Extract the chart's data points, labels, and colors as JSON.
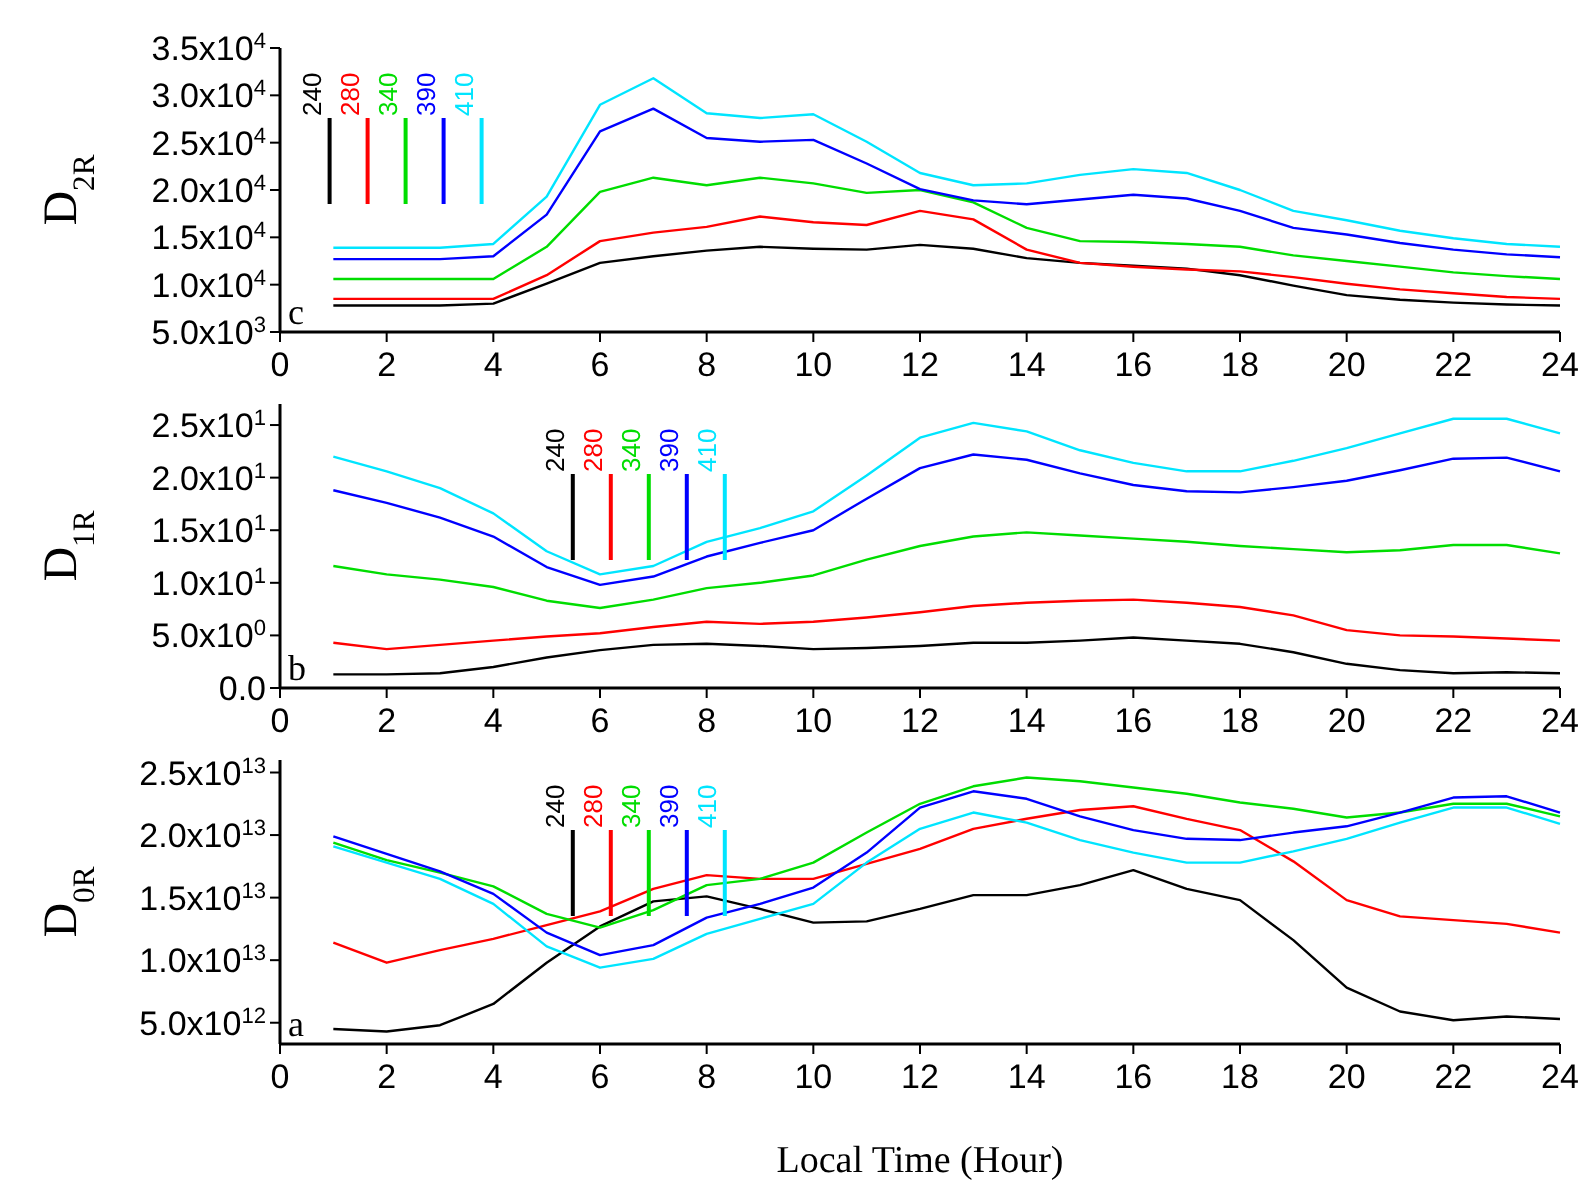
{
  "chart_data": [
    {
      "type": "line",
      "ylabel": "D$_{2R}$",
      "annotations": [
        "c"
      ],
      "legend": "top left",
      "x": [
        1,
        2,
        3,
        4,
        5,
        6,
        7,
        8,
        9,
        10,
        11,
        12,
        13,
        14,
        15,
        16,
        17,
        18,
        19,
        20,
        21,
        22,
        23,
        24
      ],
      "xlim": [
        0,
        24
      ],
      "xticks": [
        0,
        2,
        4,
        6,
        8,
        10,
        12,
        14,
        16,
        18,
        20,
        22,
        24
      ],
      "ylim": [
        5000,
        35000
      ],
      "yticks": [
        {
          "value": 5000,
          "label": "5.0x10$^{3}$"
        },
        {
          "value": 10000,
          "label": "1.0x10$^{4}$"
        },
        {
          "value": 15000,
          "label": "1.5x10$^{4}$"
        },
        {
          "value": 20000,
          "label": "2.0x10$^{4}$"
        },
        {
          "value": 25000,
          "label": "2.5x10$^{4}$"
        },
        {
          "value": 30000,
          "label": "3.0x10$^{4}$"
        },
        {
          "value": 35000,
          "label": "3.5x10$^{4}$"
        }
      ],
      "series": [
        {
          "name": "240",
          "color": "#000000",
          "values": [
            7800,
            7800,
            7800,
            8000,
            10100,
            12300,
            13000,
            13600,
            14000,
            13800,
            13700,
            14200,
            13800,
            12800,
            12300,
            12000,
            11700,
            11000,
            9900,
            8900,
            8400,
            8100,
            7900,
            7800
          ]
        },
        {
          "name": "280",
          "color": "#ff0000",
          "values": [
            8500,
            8500,
            8500,
            8500,
            11000,
            14600,
            15500,
            16100,
            17200,
            16600,
            16300,
            17800,
            16900,
            13700,
            12300,
            11900,
            11600,
            11400,
            10800,
            10100,
            9500,
            9100,
            8700,
            8500
          ]
        },
        {
          "name": "340",
          "color": "#00dd00",
          "values": [
            10600,
            10600,
            10600,
            10600,
            14000,
            19800,
            21300,
            20500,
            21300,
            20700,
            19700,
            20000,
            18700,
            16000,
            14600,
            14500,
            14300,
            14000,
            13100,
            12500,
            11900,
            11300,
            10900,
            10600
          ]
        },
        {
          "name": "390",
          "color": "#0000ff",
          "values": [
            12700,
            12700,
            12700,
            13000,
            17400,
            26200,
            28600,
            25500,
            25100,
            25300,
            22800,
            20100,
            18900,
            18500,
            19000,
            19500,
            19100,
            17800,
            16000,
            15300,
            14400,
            13700,
            13200,
            12900
          ]
        },
        {
          "name": "410",
          "color": "#00e5ff",
          "values": [
            13900,
            13900,
            13900,
            14300,
            19300,
            29000,
            31800,
            28100,
            27600,
            28000,
            25100,
            21800,
            20500,
            20700,
            21600,
            22200,
            21800,
            20000,
            17800,
            16800,
            15700,
            14900,
            14300,
            14000
          ]
        }
      ]
    },
    {
      "type": "line",
      "ylabel": "D$_{1R}$",
      "annotations": [
        "b"
      ],
      "legend": "top",
      "x": [
        1,
        2,
        3,
        4,
        5,
        6,
        7,
        8,
        9,
        10,
        11,
        12,
        13,
        14,
        15,
        16,
        17,
        18,
        19,
        20,
        21,
        22,
        23,
        24
      ],
      "xlim": [
        0,
        24
      ],
      "xticks": [
        0,
        2,
        4,
        6,
        8,
        10,
        12,
        14,
        16,
        18,
        20,
        22,
        24
      ],
      "ylim": [
        0,
        27
      ],
      "yticks": [
        {
          "value": 0,
          "label": "0.0"
        },
        {
          "value": 5,
          "label": "5.0x10$^{0}$"
        },
        {
          "value": 10,
          "label": "1.0x10$^{1}$"
        },
        {
          "value": 15,
          "label": "1.5x10$^{1}$"
        },
        {
          "value": 20,
          "label": "2.0x10$^{1}$"
        },
        {
          "value": 25,
          "label": "2.5x10$^{1}$"
        }
      ],
      "series": [
        {
          "name": "240",
          "color": "#000000",
          "values": [
            1.3,
            1.3,
            1.4,
            2.0,
            2.9,
            3.6,
            4.1,
            4.2,
            4.0,
            3.7,
            3.8,
            4.0,
            4.3,
            4.3,
            4.5,
            4.8,
            4.5,
            4.2,
            3.4,
            2.3,
            1.7,
            1.4,
            1.5,
            1.4
          ]
        },
        {
          "name": "280",
          "color": "#ff0000",
          "values": [
            4.3,
            3.7,
            4.1,
            4.5,
            4.9,
            5.2,
            5.8,
            6.3,
            6.1,
            6.3,
            6.7,
            7.2,
            7.8,
            8.1,
            8.3,
            8.4,
            8.1,
            7.7,
            6.9,
            5.5,
            5.0,
            4.9,
            4.7,
            4.5
          ]
        },
        {
          "name": "340",
          "color": "#00dd00",
          "values": [
            11.6,
            10.8,
            10.3,
            9.6,
            8.3,
            7.6,
            8.4,
            9.5,
            10.0,
            10.7,
            12.2,
            13.5,
            14.4,
            14.8,
            14.5,
            14.2,
            13.9,
            13.5,
            13.2,
            12.9,
            13.1,
            13.6,
            13.6,
            12.8
          ]
        },
        {
          "name": "390",
          "color": "#0000ff",
          "values": [
            18.8,
            17.6,
            16.2,
            14.4,
            11.5,
            9.8,
            10.6,
            12.5,
            13.8,
            15.0,
            18.0,
            20.9,
            22.2,
            21.7,
            20.4,
            19.3,
            18.7,
            18.6,
            19.1,
            19.7,
            20.7,
            21.8,
            21.9,
            20.6
          ]
        },
        {
          "name": "410",
          "color": "#00e5ff",
          "values": [
            22.0,
            20.6,
            19.0,
            16.6,
            13.0,
            10.8,
            11.6,
            13.9,
            15.2,
            16.8,
            20.2,
            23.8,
            25.2,
            24.4,
            22.6,
            21.4,
            20.6,
            20.6,
            21.6,
            22.8,
            24.2,
            25.6,
            25.6,
            24.2
          ]
        }
      ]
    },
    {
      "type": "line",
      "ylabel": "D$_{0R}$",
      "xlabel": "Local Time (Hour)",
      "annotations": [
        "a"
      ],
      "legend": "top",
      "x": [
        1,
        2,
        3,
        4,
        5,
        6,
        7,
        8,
        9,
        10,
        11,
        12,
        13,
        14,
        15,
        16,
        17,
        18,
        19,
        20,
        21,
        22,
        23,
        24
      ],
      "xlim": [
        0,
        24
      ],
      "xticks": [
        0,
        2,
        4,
        6,
        8,
        10,
        12,
        14,
        16,
        18,
        20,
        22,
        24
      ],
      "ylim": [
        3300000000000,
        26000000000000
      ],
      "yticks": [
        {
          "value": 5000000000000,
          "label": "5.0x10$^{12}$"
        },
        {
          "value": 10000000000000,
          "label": "1.0x10$^{13}$"
        },
        {
          "value": 15000000000000,
          "label": "1.5x10$^{13}$"
        },
        {
          "value": 20000000000000,
          "label": "2.0x10$^{13}$"
        },
        {
          "value": 25000000000000,
          "label": "2.5x10$^{13}$"
        }
      ],
      "series": [
        {
          "name": "240",
          "color": "#000000",
          "values": [
            4500000000000,
            4300000000000,
            4800000000000,
            6500000000000,
            9800000000000,
            12700000000000,
            14700000000000,
            15100000000000,
            14100000000000,
            13000000000000,
            13100000000000,
            14100000000000,
            15200000000000,
            15200000000000,
            16000000000000,
            17200000000000,
            15700000000000,
            14800000000000,
            11600000000000,
            7800000000000,
            5900000000000,
            5200000000000,
            5500000000000,
            5300000000000
          ]
        },
        {
          "name": "280",
          "color": "#ff0000",
          "values": [
            11400000000000,
            9800000000000,
            10800000000000,
            11700000000000,
            12800000000000,
            13900000000000,
            15700000000000,
            16800000000000,
            16500000000000,
            16500000000000,
            17700000000000,
            18900000000000,
            20500000000000,
            21300000000000,
            22000000000000,
            22300000000000,
            21300000000000,
            20400000000000,
            17900000000000,
            14800000000000,
            13500000000000,
            13200000000000,
            12900000000000,
            12200000000000
          ]
        },
        {
          "name": "340",
          "color": "#00dd00",
          "values": [
            19400000000000,
            18000000000000,
            17000000000000,
            15900000000000,
            13700000000000,
            12600000000000,
            14000000000000,
            16000000000000,
            16500000000000,
            17800000000000,
            20200000000000,
            22500000000000,
            23900000000000,
            24600000000000,
            24300000000000,
            23800000000000,
            23300000000000,
            22600000000000,
            22100000000000,
            21400000000000,
            21800000000000,
            22500000000000,
            22500000000000,
            21500000000000
          ]
        },
        {
          "name": "390",
          "color": "#0000ff",
          "values": [
            19900000000000,
            18500000000000,
            17100000000000,
            15300000000000,
            12200000000000,
            10400000000000,
            11200000000000,
            13400000000000,
            14500000000000,
            15800000000000,
            18600000000000,
            22200000000000,
            23500000000000,
            22900000000000,
            21500000000000,
            20400000000000,
            19700000000000,
            19600000000000,
            20200000000000,
            20700000000000,
            21800000000000,
            23000000000000,
            23100000000000,
            21800000000000
          ]
        },
        {
          "name": "410",
          "color": "#00e5ff",
          "values": [
            19100000000000,
            17800000000000,
            16500000000000,
            14500000000000,
            11100000000000,
            9400000000000,
            10100000000000,
            12100000000000,
            13300000000000,
            14500000000000,
            17800000000000,
            20500000000000,
            21800000000000,
            21000000000000,
            19600000000000,
            18600000000000,
            17800000000000,
            17800000000000,
            18700000000000,
            19700000000000,
            21000000000000,
            22200000000000,
            22200000000000,
            20900000000000
          ]
        }
      ]
    }
  ]
}
